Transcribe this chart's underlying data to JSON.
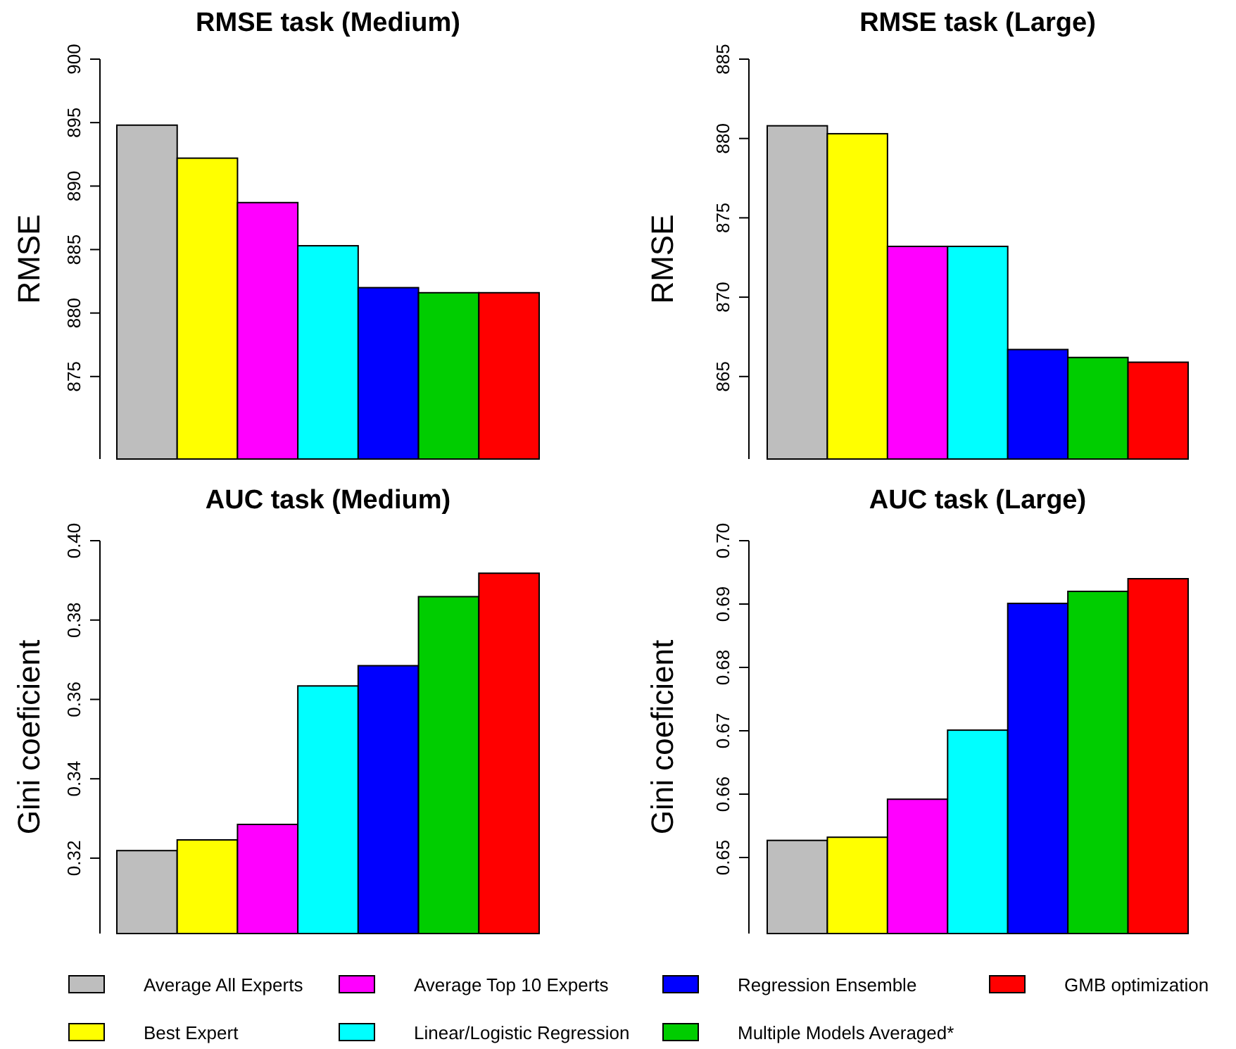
{
  "chart_data": [
    {
      "type": "bar",
      "title": "RMSE task (Medium)",
      "ylabel": "RMSE",
      "categories": [
        null
      ],
      "ylim": [
        868.5,
        900
      ],
      "yticks": [
        875,
        880,
        885,
        890,
        895,
        900
      ],
      "legend": "bottom",
      "series": [
        {
          "name": "Average All Experts",
          "color": "#bebebe",
          "values": [
            894.8
          ]
        },
        {
          "name": "Best Expert",
          "color": "#ffff00",
          "values": [
            892.2
          ]
        },
        {
          "name": "Average Top 10 Experts",
          "color": "#ff00ff",
          "values": [
            888.7
          ]
        },
        {
          "name": "Linear/Logistic Regression",
          "color": "#00ffff",
          "values": [
            885.3
          ]
        },
        {
          "name": "Regression Ensemble",
          "color": "#0000ff",
          "values": [
            882.0
          ]
        },
        {
          "name": "Multiple Models Averaged*",
          "color": "#00cd00",
          "values": [
            881.6
          ]
        },
        {
          "name": "GMB optimization",
          "color": "#ff0000",
          "values": [
            881.6
          ]
        }
      ]
    },
    {
      "type": "bar",
      "title": "RMSE task (Large)",
      "ylabel": "RMSE",
      "categories": [
        null,
        null,
        null,
        null,
        null,
        null,
        null
      ],
      "ylim": [
        859.8,
        885
      ],
      "yticks": [
        865,
        870,
        875,
        880,
        885
      ],
      "values": [
        880.8,
        880.3,
        873.2,
        873.2,
        866.7,
        866.2,
        865.9
      ],
      "colors": [
        "#bebebe",
        "#ffff00",
        "#ff00ff",
        "#00ffff",
        "#0000ff",
        "#00cd00",
        "#ff0000"
      ]
    },
    {
      "type": "bar",
      "title": "AUC task (Medium)",
      "ylabel": "Gini coeficient",
      "categories": [
        null
      ],
      "ylim": [
        0.301,
        0.4
      ],
      "yticks": [
        {
          "value": 0.32,
          "label": "0.32"
        },
        {
          "value": 0.34,
          "label": "0.34"
        },
        {
          "value": 0.36,
          "label": "0.36"
        },
        {
          "value": 0.38,
          "label": "0.38"
        },
        {
          "value": 0.4,
          "label": "0.40"
        }
      ],
      "series": [
        {
          "color": "#bebebe",
          "values": [
            0.3219
          ]
        },
        {
          "color": "#ffff00",
          "values": [
            0.3246
          ]
        },
        {
          "color": "#ff00ff",
          "values": [
            0.3285
          ]
        },
        {
          "color": "#00ffff",
          "values": [
            0.3634
          ]
        },
        {
          "color": "#0000ff",
          "values": [
            0.3685
          ]
        },
        {
          "color": "#00cd00",
          "values": [
            0.3859
          ]
        },
        {
          "color": "#ff0000",
          "values": [
            0.3918
          ]
        }
      ]
    },
    {
      "type": "bar",
      "title": "AUC task (Large)",
      "ylabel": "Gini coeficient",
      "categories": [
        null,
        null,
        null,
        null,
        null,
        null,
        null
      ],
      "ylim": [
        0.638,
        0.7
      ],
      "yticks": [
        0.65,
        0.66,
        0.67,
        0.68,
        0.69,
        {
          "value": 0.7,
          "label": "0.70"
        }
      ],
      "values": [
        0.6527,
        0.6532,
        0.6592,
        0.6701,
        0.6901,
        0.692,
        0.694
      ],
      "colors": [
        "#bebebe",
        "#ffff00",
        "#ff00ff",
        "#00ffff",
        "#0000ff",
        "#00cd00",
        "#ff0000"
      ]
    }
  ]
}
